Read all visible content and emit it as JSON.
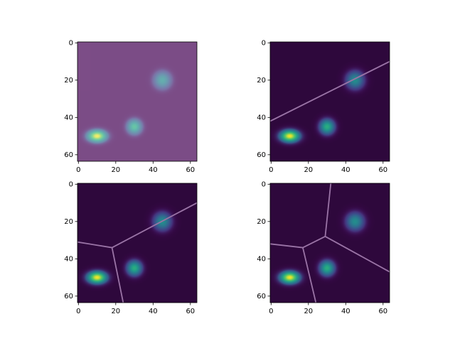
{
  "chart_data": [
    {
      "type": "image",
      "xlim": [
        -0.5,
        63.5
      ],
      "ylim": [
        63.5,
        -0.5
      ],
      "xticks": [
        0,
        20,
        40,
        60
      ],
      "yticks": [
        0,
        20,
        40,
        60
      ],
      "background": "#440154",
      "alpha": 0.7,
      "blobs": [
        {
          "x": 10,
          "y": 50,
          "sx": 4,
          "sy": 2.5,
          "amplitude": 1
        },
        {
          "x": 30,
          "y": 45,
          "sx": 3,
          "sy": 3,
          "amplitude": 0.7
        },
        {
          "x": 45,
          "y": 20,
          "sx": 3.5,
          "sy": 3.5,
          "amplitude": 0.55
        }
      ]
    },
    {
      "type": "image",
      "xlim": [
        -0.5,
        63.5
      ],
      "ylim": [
        63.5,
        -0.5
      ],
      "xticks": [
        0,
        20,
        40,
        60
      ],
      "yticks": [
        0,
        20,
        40,
        60
      ],
      "background": "#2e083c",
      "alpha": 1,
      "line_color": "#9a74a6",
      "blobs": [
        {
          "x": 10,
          "y": 50,
          "sx": 4,
          "sy": 2.5,
          "amplitude": 1
        },
        {
          "x": 30,
          "y": 45,
          "sx": 3,
          "sy": 3,
          "amplitude": 0.7
        },
        {
          "x": 45,
          "y": 20,
          "sx": 3.5,
          "sy": 3.5,
          "amplitude": 0.55
        }
      ],
      "boundaries": [
        [
          -0.5,
          42,
          63.5,
          10
        ]
      ]
    },
    {
      "type": "image",
      "xlim": [
        -0.5,
        63.5
      ],
      "ylim": [
        63.5,
        -0.5
      ],
      "xticks": [
        0,
        20,
        40,
        60
      ],
      "yticks": [
        0,
        20,
        40,
        60
      ],
      "background": "#2e083c",
      "alpha": 1,
      "line_color": "#9a74a6",
      "blobs": [
        {
          "x": 10,
          "y": 50,
          "sx": 4,
          "sy": 2.5,
          "amplitude": 1
        },
        {
          "x": 30,
          "y": 45,
          "sx": 3,
          "sy": 3,
          "amplitude": 0.7
        },
        {
          "x": 45,
          "y": 20,
          "sx": 3.5,
          "sy": 3.5,
          "amplitude": 0.55
        }
      ],
      "boundaries": [
        [
          18,
          34,
          63.5,
          10
        ],
        [
          -0.5,
          31,
          18,
          34
        ],
        [
          18,
          34,
          24,
          63.5
        ]
      ]
    },
    {
      "type": "image",
      "xlim": [
        -0.5,
        63.5
      ],
      "ylim": [
        63.5,
        -0.5
      ],
      "xticks": [
        0,
        20,
        40,
        60
      ],
      "yticks": [
        0,
        20,
        40,
        60
      ],
      "background": "#2e083c",
      "alpha": 1,
      "line_color": "#9a74a6",
      "blobs": [
        {
          "x": 10,
          "y": 50,
          "sx": 4,
          "sy": 2.5,
          "amplitude": 1
        },
        {
          "x": 30,
          "y": 45,
          "sx": 3,
          "sy": 3,
          "amplitude": 0.7
        },
        {
          "x": 45,
          "y": 20,
          "sx": 3.5,
          "sy": 3.5,
          "amplitude": 0.55
        }
      ],
      "boundaries": [
        [
          -0.5,
          32,
          17,
          34
        ],
        [
          17,
          34,
          24,
          63.5
        ],
        [
          17,
          34,
          29,
          28
        ],
        [
          29,
          28,
          32,
          -0.5
        ],
        [
          29,
          28,
          63.5,
          47
        ]
      ]
    }
  ]
}
